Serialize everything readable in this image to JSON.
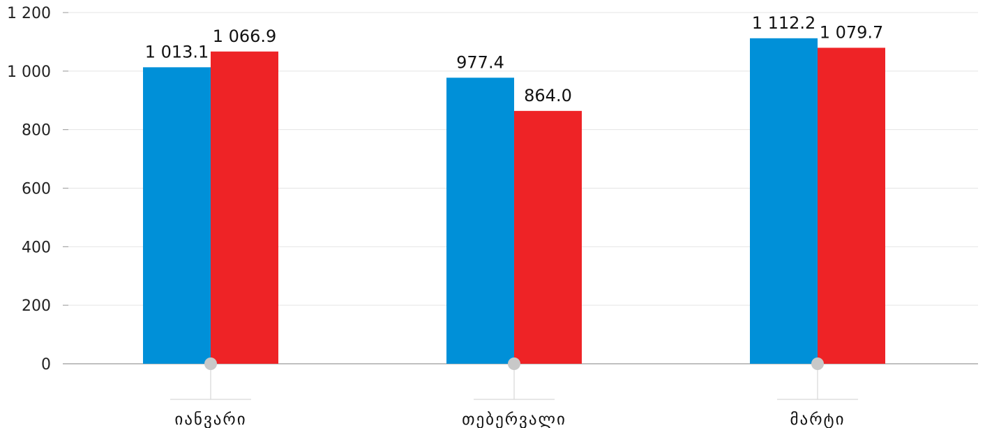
{
  "chart_data": {
    "type": "bar",
    "categories": [
      "იანვარი",
      "თებერვალი",
      "მარტი"
    ],
    "series": [
      {
        "values": [
          1013.1,
          977.4,
          1112.2
        ],
        "labels": [
          "1 013.1",
          "977.4",
          "1 112.2"
        ],
        "color": "#0090d8"
      },
      {
        "values": [
          1066.9,
          864.0,
          1079.7
        ],
        "labels": [
          "1 066.9",
          "864.0",
          "1 079.7"
        ],
        "color": "#ee2326"
      }
    ],
    "ylim": [
      0,
      1200
    ],
    "yticks": [
      0,
      200,
      400,
      600,
      800,
      1000,
      1200
    ],
    "ytick_labels": [
      "0",
      "200",
      "400",
      "600",
      "800",
      "1 000",
      "1 200"
    ],
    "grid": true,
    "title": "",
    "xlabel": "",
    "ylabel": ""
  }
}
